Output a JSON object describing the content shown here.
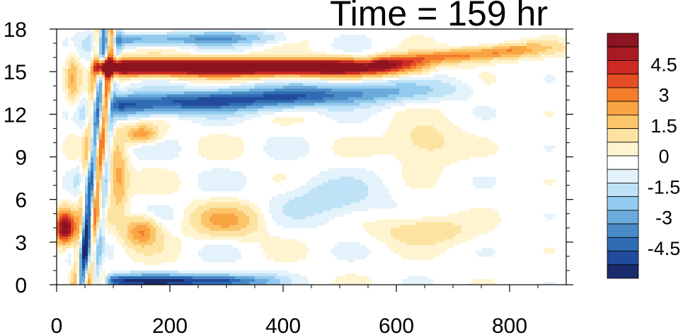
{
  "title": "Time = 159 hr",
  "chart_data": {
    "type": "heatmap",
    "title": "Time = 159 hr",
    "xlabel": "",
    "ylabel": "",
    "xlim": [
      0,
      900
    ],
    "ylim": [
      0,
      18
    ],
    "x_ticks": [
      0,
      200,
      400,
      600,
      800
    ],
    "y_ticks": [
      0,
      3,
      6,
      9,
      12,
      15,
      18
    ],
    "colorbar": {
      "levels": [
        -6,
        -5.25,
        -4.5,
        -3.75,
        -3,
        -2.25,
        -1.5,
        -0.75,
        -0.25,
        0.25,
        0.75,
        1.5,
        2.25,
        3,
        3.75,
        4.5,
        5.25,
        6
      ],
      "colors": [
        "#1a2b6b",
        "#234b9c",
        "#2f6cb4",
        "#4a8ac6",
        "#6aabdb",
        "#93cbee",
        "#bfe2f7",
        "#e3f2fb",
        "#ffffff",
        "#fff4d0",
        "#fde3a2",
        "#fcc56c",
        "#f9a443",
        "#f47d2c",
        "#e54e25",
        "#cc2a23",
        "#a91b22",
        "#8c1420"
      ],
      "tick_labels": [
        "4.5",
        "3",
        "1.5",
        "0",
        "-1.5",
        "-3",
        "-4.5"
      ],
      "tick_values": [
        4.5,
        3,
        1.5,
        0,
        -1.5,
        -3,
        -4.5
      ]
    },
    "features": [
      {
        "x": [
          70,
          600
        ],
        "y": [
          15.3,
          15.3
        ],
        "sx": 0,
        "sy": 0.55,
        "amp": 9,
        "kind": "line",
        "taper": [
          500,
          680
        ]
      },
      {
        "x": [
          560,
          880
        ],
        "y": [
          15.6,
          16.7
        ],
        "sx": 0,
        "sy": 0.5,
        "amp": 3.2,
        "kind": "line",
        "taper": [
          800,
          920
        ]
      },
      {
        "x": [
          100,
          720
        ],
        "y": [
          12.6,
          13.8
        ],
        "sx": 0,
        "sy": 0.75,
        "amp": -4.8,
        "kind": "line",
        "taper": [
          420,
          760
        ]
      },
      {
        "x": [
          100,
          420
        ],
        "y": [
          17.2,
          17.4
        ],
        "sx": 0,
        "sy": 0.45,
        "amp": -2.8,
        "kind": "line",
        "taper": [
          300,
          440
        ]
      },
      {
        "x": [
          90,
          400
        ],
        "y": [
          0.25,
          0.25
        ],
        "sx": 0,
        "sy": 0.45,
        "amp": -5.2,
        "kind": "line",
        "taper": [
          300,
          420
        ]
      },
      {
        "x": [
          50,
          90
        ],
        "y": [
          0,
          17
        ],
        "sx": 10,
        "sy": 0,
        "amp": 3.5,
        "kind": "vline"
      },
      {
        "x": [
          15,
          15
        ],
        "y": [
          4.0,
          4.0
        ],
        "sx": 18,
        "sy": 1.1,
        "amp": 7,
        "kind": "blob"
      },
      {
        "x": [
          55,
          55
        ],
        "y": [
          3.0,
          3.0
        ],
        "sx": 10,
        "sy": 3,
        "amp": -3.5,
        "kind": "blob"
      },
      {
        "x": [
          150,
          150
        ],
        "y": [
          10.6,
          10.6
        ],
        "sx": 30,
        "sy": 0.6,
        "amp": 3.0,
        "kind": "blob"
      },
      {
        "x": [
          150,
          150
        ],
        "y": [
          3.8,
          3.8
        ],
        "sx": 30,
        "sy": 1.0,
        "amp": 3.2,
        "kind": "blob"
      },
      {
        "x": [
          300,
          300
        ],
        "y": [
          4.5,
          4.5
        ],
        "sx": 60,
        "sy": 1.2,
        "amp": 2.2,
        "kind": "blob"
      },
      {
        "x": [
          480,
          480
        ],
        "y": [
          6.0,
          6.0
        ],
        "sx": 90,
        "sy": 1.5,
        "amp": -1.2,
        "kind": "blob"
      },
      {
        "x": [
          650,
          650
        ],
        "y": [
          10.0,
          10.0
        ],
        "sx": 60,
        "sy": 1.5,
        "amp": 1.2,
        "kind": "blob"
      },
      {
        "x": [
          650,
          650
        ],
        "y": [
          3.8,
          3.8
        ],
        "sx": 80,
        "sy": 1.0,
        "amp": 1.4,
        "kind": "blob"
      },
      {
        "x": [
          28,
          28
        ],
        "y": [
          14.5,
          14.5
        ],
        "sx": 10,
        "sy": 2.0,
        "amp": 1.8,
        "kind": "blob"
      },
      {
        "x": [
          110,
          110
        ],
        "y": [
          7.5,
          7.5
        ],
        "sx": 15,
        "sy": 2.5,
        "amp": 2.5,
        "kind": "blob"
      }
    ]
  }
}
